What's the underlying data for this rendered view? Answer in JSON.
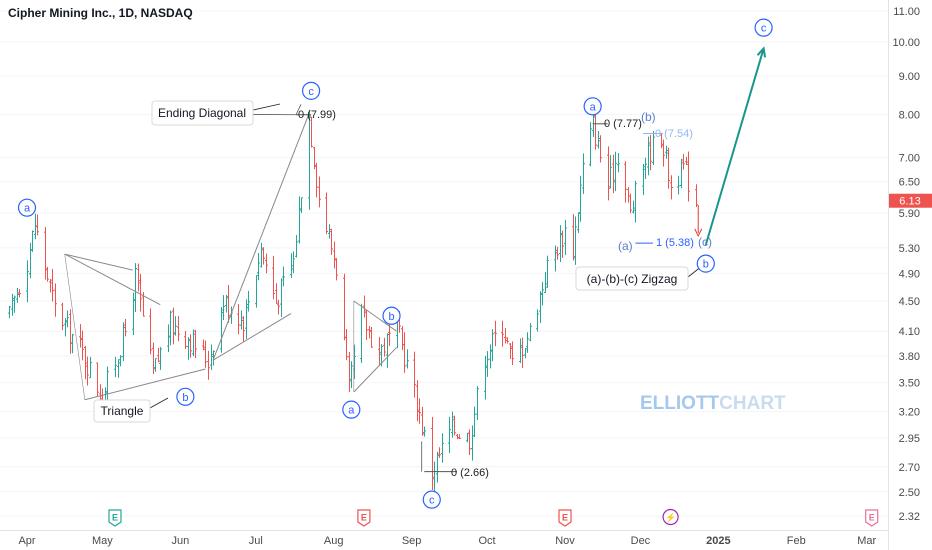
{
  "title": "Cipher Mining Inc., 1D, NASDAQ",
  "watermark": {
    "part1": "ELLIOTT",
    "part2": "CHART"
  },
  "chart_data": {
    "type": "bar",
    "style": "ohlc-bars",
    "scale": "log",
    "ylim": [
      2.3,
      11.4
    ],
    "y_ticks": [
      11.0,
      10.0,
      9.0,
      8.0,
      7.0,
      6.5,
      5.9,
      5.3,
      4.9,
      4.5,
      4.1,
      3.8,
      3.5,
      3.2,
      2.95,
      2.7,
      2.5,
      2.32
    ],
    "y_tick_labels": [
      "11.00",
      "10.00",
      "9.00",
      "8.00",
      "7.00",
      "6.50",
      "5.90",
      "5.30",
      "4.90",
      "4.50",
      "4.10",
      "3.80",
      "3.50",
      "3.20",
      "2.95",
      "2.70",
      "2.50",
      "2.32"
    ],
    "x_labels": [
      "Apr",
      "May",
      "Jun",
      "Jul",
      "Aug",
      "Sep",
      "Oct",
      "Nov",
      "Dec",
      "2025",
      "Feb",
      "Mar"
    ],
    "x_range": [
      "2024-03-25",
      "2025-03-31"
    ],
    "x_label_dates": [
      "2024-04-01",
      "2024-05-01",
      "2024-06-01",
      "2024-07-01",
      "2024-08-01",
      "2024-09-01",
      "2024-10-01",
      "2024-11-01",
      "2024-12-01",
      "2025-01-01",
      "2025-02-01",
      "2025-03-01"
    ],
    "last_price": 6.13,
    "last_price_label": "6.13",
    "up_color": "#26a69a",
    "down_color": "#ef5350",
    "price_path": [
      [
        "2024-03-25",
        4.3
      ],
      [
        "2024-04-01",
        5.1
      ],
      [
        "2024-04-04",
        5.7
      ],
      [
        "2024-04-12",
        4.4
      ],
      [
        "2024-04-22",
        3.9
      ],
      [
        "2024-05-01",
        3.35
      ],
      [
        "2024-05-10",
        4.1
      ],
      [
        "2024-05-14",
        4.85
      ],
      [
        "2024-05-21",
        3.6
      ],
      [
        "2024-05-28",
        4.2
      ],
      [
        "2024-06-05",
        4.0
      ],
      [
        "2024-06-12",
        3.75
      ],
      [
        "2024-06-18",
        4.5
      ],
      [
        "2024-06-26",
        4.25
      ],
      [
        "2024-07-03",
        5.3
      ],
      [
        "2024-07-09",
        4.5
      ],
      [
        "2024-07-16",
        5.1
      ],
      [
        "2024-07-22",
        7.99
      ],
      [
        "2024-07-26",
        6.2
      ],
      [
        "2024-08-02",
        5.0
      ],
      [
        "2024-08-07",
        3.4
      ],
      [
        "2024-08-12",
        4.3
      ],
      [
        "2024-08-19",
        3.85
      ],
      [
        "2024-08-26",
        4.15
      ],
      [
        "2024-09-03",
        3.3
      ],
      [
        "2024-09-09",
        2.66
      ],
      [
        "2024-09-17",
        3.05
      ],
      [
        "2024-09-24",
        2.95
      ],
      [
        "2024-09-30",
        3.8
      ],
      [
        "2024-10-07",
        4.2
      ],
      [
        "2024-10-11",
        3.7
      ],
      [
        "2024-10-18",
        4.1
      ],
      [
        "2024-10-25",
        5.0
      ],
      [
        "2024-11-01",
        5.6
      ],
      [
        "2024-11-04",
        5.3
      ],
      [
        "2024-11-08",
        6.8
      ],
      [
        "2024-11-12",
        7.77
      ],
      [
        "2024-11-18",
        6.4
      ],
      [
        "2024-11-22",
        7.1
      ],
      [
        "2024-11-27",
        5.9
      ],
      [
        "2024-12-03",
        7.0
      ],
      [
        "2024-12-09",
        7.54
      ],
      [
        "2024-12-13",
        6.4
      ],
      [
        "2024-12-18",
        6.8
      ],
      [
        "2024-12-23",
        6.13
      ]
    ],
    "annotations": {
      "waves": [
        {
          "label": "a",
          "date": "2024-04-01",
          "price": 6.0,
          "color": "#2962ff"
        },
        {
          "label": "b",
          "date": "2024-06-03",
          "price": 3.35,
          "color": "#2962ff"
        },
        {
          "label": "c",
          "date": "2024-07-23",
          "price": 8.6,
          "color": "#2962ff"
        },
        {
          "label": "a",
          "date": "2024-08-08",
          "price": 3.22,
          "color": "#2962ff"
        },
        {
          "label": "b",
          "date": "2024-08-24",
          "price": 4.3,
          "color": "#2962ff"
        },
        {
          "label": "c",
          "date": "2024-09-09",
          "price": 2.44,
          "color": "#2962ff"
        },
        {
          "label": "a",
          "date": "2024-11-12",
          "price": 8.2,
          "color": "#2962ff"
        },
        {
          "label": "b",
          "date": "2024-12-27",
          "price": 5.05,
          "color": "#2962ff"
        },
        {
          "label": "c",
          "date": "2025-01-19",
          "price": 10.45,
          "color": "#2962ff"
        }
      ],
      "text_labels": [
        {
          "text": "0 (7.99)",
          "color": "#333333"
        },
        {
          "text": "0 (2.66)",
          "color": "#333333"
        },
        {
          "text": "0 (7.77)",
          "color": "#333333"
        },
        {
          "text": "0 (7.54)",
          "color": "#90b8ef"
        },
        {
          "text": "1 (5.38)",
          "color": "#2962ff"
        },
        {
          "text": "(b)",
          "color": "#5b7fcc"
        },
        {
          "text": "(a)",
          "color": "#5b7fcc"
        },
        {
          "text": "(c)",
          "color": "#5b7fcc"
        }
      ],
      "callouts": [
        {
          "text": "Ending Diagonal"
        },
        {
          "text": "Triangle"
        },
        {
          "text": "(a)-(b)-(c) Zigzag"
        }
      ],
      "event_markers": [
        {
          "letter": "E",
          "date": "2024-05-06",
          "color": "#26a69a"
        },
        {
          "letter": "E",
          "date": "2024-08-13",
          "color": "#ef5350"
        },
        {
          "letter": "E",
          "date": "2024-11-01",
          "color": "#ef5350"
        },
        {
          "letter": "⚡",
          "date": "2024-12-13",
          "color": "#9c27b0"
        },
        {
          "letter": "E",
          "date": "2025-03-03",
          "color": "#e8709a"
        }
      ]
    }
  }
}
